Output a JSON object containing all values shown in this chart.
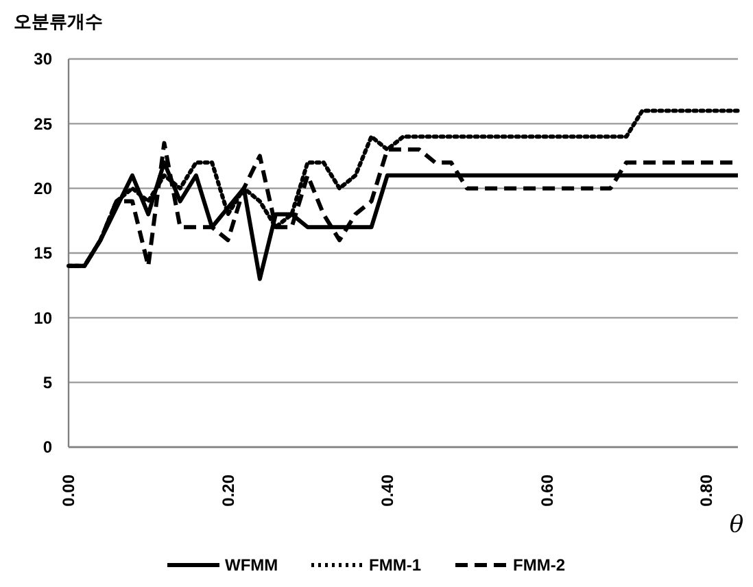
{
  "chart_data": {
    "type": "line",
    "ylabel": "오분류개수",
    "xlabel": "θ",
    "x": [
      0,
      0.02,
      0.04,
      0.06,
      0.08,
      0.1,
      0.12,
      0.14,
      0.16,
      0.18,
      0.2,
      0.22,
      0.24,
      0.26,
      0.28,
      0.3,
      0.32,
      0.34,
      0.36,
      0.38,
      0.4,
      0.42,
      0.44,
      0.46,
      0.48,
      0.5,
      0.52,
      0.54,
      0.56,
      0.58,
      0.6,
      0.62,
      0.64,
      0.66,
      0.68,
      0.7,
      0.72,
      0.74,
      0.76,
      0.78,
      0.8,
      0.82,
      0.84
    ],
    "series": [
      {
        "name": "WFMM",
        "color": "#000000",
        "line_style": "solid",
        "values": [
          14,
          14,
          16,
          18.5,
          21,
          18,
          22,
          19,
          21,
          17,
          18.5,
          20,
          13,
          18,
          18,
          17,
          17,
          17,
          17,
          17,
          21,
          21,
          21,
          21,
          21,
          21,
          21,
          21,
          21,
          21,
          21,
          21,
          21,
          21,
          21,
          21,
          21,
          21,
          21,
          21,
          21,
          21,
          21
        ]
      },
      {
        "name": "FMM-1",
        "color": "#000000",
        "line_style": "dotted",
        "values": [
          14,
          14,
          16,
          19,
          20,
          19,
          21,
          20,
          22,
          22,
          18,
          20,
          19,
          17,
          18,
          22,
          22,
          20,
          21,
          24,
          23,
          24,
          24,
          24,
          24,
          24,
          24,
          24,
          24,
          24,
          24,
          24,
          24,
          24,
          24,
          24,
          26,
          26,
          26,
          26,
          26,
          26,
          26
        ]
      },
      {
        "name": "FMM-2",
        "color": "#000000",
        "line_style": "dashed",
        "values": [
          14,
          14,
          16,
          19,
          19,
          14,
          23.5,
          17,
          17,
          17,
          16,
          20,
          22.5,
          17,
          17,
          21,
          18,
          16,
          18,
          19,
          23,
          23,
          23,
          22,
          22,
          20,
          20,
          20,
          20,
          20,
          20,
          20,
          20,
          20,
          20,
          22,
          22,
          22,
          22,
          22,
          22,
          22,
          22
        ]
      }
    ],
    "xlim": [
      0,
      0.84
    ],
    "xticks": [
      {
        "value": 0,
        "label": "0.00"
      },
      {
        "value": 0.2,
        "label": "0.20"
      },
      {
        "value": 0.4,
        "label": "0.40"
      },
      {
        "value": 0.6,
        "label": "0.60"
      },
      {
        "value": 0.8,
        "label": "0.80"
      }
    ],
    "ylim": [
      0,
      30
    ],
    "yticks": [
      0,
      5,
      10,
      15,
      20,
      25,
      30
    ],
    "grid": "y",
    "legend": "bottom",
    "marker": "none"
  }
}
